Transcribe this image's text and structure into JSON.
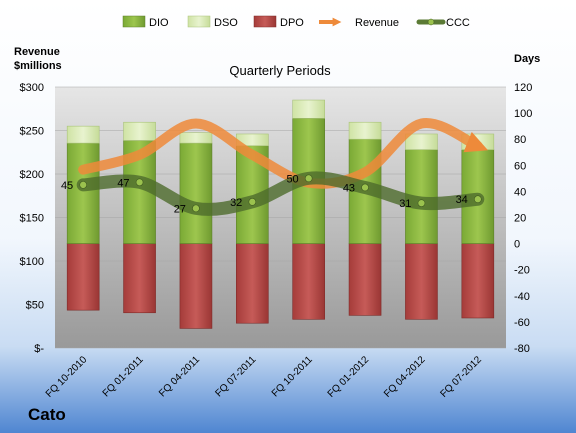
{
  "chart_data": {
    "type": "bar",
    "title": "Quarterly Periods",
    "company": "Cato",
    "left_axis_label": [
      "Revenue",
      "$millions"
    ],
    "right_axis_label": "Days",
    "categories": [
      "FQ 10-2010",
      "FQ 01-2011",
      "FQ 04-2011",
      "FQ 07-2011",
      "FQ 10-2011",
      "FQ 01-2012",
      "FQ 04-2012",
      "FQ 07-2012"
    ],
    "left_ticks": [
      "$300",
      "$250",
      "$200",
      "$150",
      "$100",
      "$50",
      "$-"
    ],
    "right_ticks": [
      "120",
      "100",
      "80",
      "60",
      "40",
      "20",
      "0",
      "-20",
      "-40",
      "-60",
      "-80"
    ],
    "ylim_left": [
      0,
      300
    ],
    "ylim_right": [
      -80,
      120
    ],
    "legend_position": "top",
    "series": [
      {
        "name": "DIO",
        "axis": "right",
        "values": [
          77,
          79,
          77,
          75,
          96,
          80,
          72,
          72
        ],
        "color": "#8fbf3f"
      },
      {
        "name": "DSO",
        "axis": "right",
        "values": [
          13,
          14,
          8,
          9,
          14,
          13,
          12,
          12
        ],
        "color": "#dcedb6"
      },
      {
        "name": "DPO",
        "axis": "right",
        "values": [
          -51,
          -53,
          -65,
          -61,
          -58,
          -55,
          -58,
          -57
        ],
        "color": "#b94a48"
      },
      {
        "name": "Revenue",
        "axis": "left",
        "values": [
          205,
          222,
          258,
          222,
          190,
          202,
          258,
          232
        ],
        "color": "#ee8a3a"
      },
      {
        "name": "CCC",
        "axis": "right",
        "values": [
          45,
          47,
          27,
          32,
          50,
          43,
          31,
          34
        ],
        "color": "#5b7a35"
      }
    ],
    "ccc_labels": [
      "45",
      "47",
      "27",
      "32",
      "50",
      "43",
      "31",
      "34"
    ],
    "grid": true
  }
}
